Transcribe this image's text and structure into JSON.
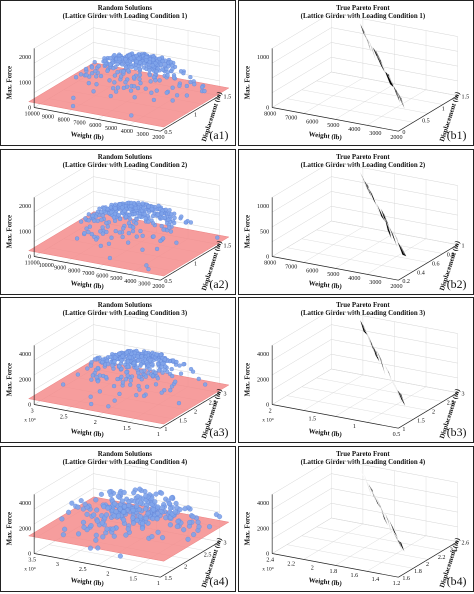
{
  "figure": {
    "panels": [
      {
        "id": "a1",
        "kind": "random",
        "title": "Random Solutions",
        "subtitle": "(Lattice Girder with Loading Condition 1)",
        "label": "(a1)",
        "zlabel": "Max. Force",
        "xlabel": "Weight (lb)",
        "ylabel": "Displacement (in)",
        "ztick_labels": [
          "0",
          "1000",
          "2000"
        ],
        "xtick_labels": [
          "10000",
          "9000",
          "8000",
          "7000",
          "6000",
          "5000",
          "4000",
          "3000",
          "2000"
        ],
        "ytick_labels": [
          "0.5",
          "1",
          "1.5"
        ],
        "x_multiplier": ""
      },
      {
        "id": "b1",
        "kind": "pareto",
        "title": "True Pareto Front",
        "subtitle": "(Lattice Girder with Loading Condition 1)",
        "label": "(b1)",
        "zlabel": "Max. Force",
        "xlabel": "Weight (lb)",
        "ylabel": "Displacement (in)",
        "ztick_labels": [
          "0",
          "1000"
        ],
        "xtick_labels": [
          "8000",
          "7000",
          "6000",
          "5000",
          "4000",
          "3000",
          "2000"
        ],
        "ytick_labels": [
          "0",
          "0.5",
          "1",
          "1.5"
        ],
        "x_multiplier": ""
      },
      {
        "id": "a2",
        "kind": "random",
        "title": "Random Solutions",
        "subtitle": "(Lattice Girder with Loading Condition 2)",
        "label": "(a2)",
        "zlabel": "Max. Force",
        "xlabel": "Weight (lb)",
        "ylabel": "Displacement (in)",
        "ztick_labels": [
          "0",
          "1000",
          "2000"
        ],
        "xtick_labels": [
          "11000",
          "10000",
          "9000",
          "8000",
          "7000",
          "6000",
          "5000",
          "4000",
          "3000",
          "2000"
        ],
        "ytick_labels": [
          "0.5",
          "1",
          "1.5"
        ],
        "x_multiplier": ""
      },
      {
        "id": "b2",
        "kind": "pareto",
        "title": "True Pareto Front",
        "subtitle": "(Lattice Girder with Loading Condition 2)",
        "label": "(b2)",
        "zlabel": "Max. Force",
        "xlabel": "Weight (lb)",
        "ylabel": "Displacement (in)",
        "ztick_labels": [
          "0",
          "500",
          "1000"
        ],
        "xtick_labels": [
          "8000",
          "7000",
          "6000",
          "5000",
          "4000",
          "3000",
          "2000"
        ],
        "ytick_labels": [
          "0.2",
          "0.4",
          "0.6",
          "0.8",
          "1"
        ],
        "x_multiplier": ""
      },
      {
        "id": "a3",
        "kind": "random",
        "title": "Random Solutions",
        "subtitle": "(Lattice Girder with Loading Condition 3)",
        "label": "(a3)",
        "zlabel": "Max. Force",
        "xlabel": "Weight (lb)",
        "ylabel": "Displacement (in)",
        "ztick_labels": [
          "0",
          "2000",
          "4000"
        ],
        "xtick_labels": [
          "3",
          "2.5",
          "2",
          "1.5",
          "1"
        ],
        "ytick_labels": [
          "1",
          "1.5",
          "2",
          "2.5",
          "3"
        ],
        "x_multiplier": "x 10⁴"
      },
      {
        "id": "b3",
        "kind": "pareto",
        "title": "True Pareto Front",
        "subtitle": "(Lattice Girder with Loading Condition 3)",
        "label": "(b3)",
        "zlabel": "Max. Force",
        "xlabel": "Weight (lb)",
        "ylabel": "Displacement (in)",
        "ztick_labels": [
          "0",
          "2000",
          "4000"
        ],
        "xtick_labels": [
          "2",
          "1.5",
          "1",
          "0.5"
        ],
        "ytick_labels": [
          "1",
          "1.5",
          "2",
          "2.5",
          "3"
        ],
        "x_multiplier": "x 10⁴"
      },
      {
        "id": "a4",
        "kind": "random",
        "title": "Random Solutions",
        "subtitle": "(Lattice Girder with Loading Condition 4)",
        "label": "(a4)",
        "zlabel": "Max. Force",
        "xlabel": "Weight (lb)",
        "ylabel": "Displacement (in)",
        "ztick_labels": [
          "0",
          "2000",
          "4000"
        ],
        "xtick_labels": [
          "3.5",
          "3",
          "2.5",
          "2",
          "1.5",
          "1"
        ],
        "ytick_labels": [
          "1.5",
          "2",
          "2.5",
          "3"
        ],
        "x_multiplier": "x 10⁴"
      },
      {
        "id": "b4",
        "kind": "pareto",
        "title": "True Pareto Front",
        "subtitle": "(Lattice Girder with Loading Condition 4)",
        "label": "(b4)",
        "zlabel": "Max. Force",
        "xlabel": "Weight (lb)",
        "ylabel": "Displacement (in)",
        "ztick_labels": [
          "0",
          "2000",
          "4000"
        ],
        "xtick_labels": [
          "2.4",
          "2.2",
          "2",
          "1.8",
          "1.6",
          "1.4",
          "1.2"
        ],
        "ytick_labels": [
          "1.6",
          "1.8",
          "2",
          "2.2",
          "2.4",
          "2.6"
        ],
        "x_multiplier": "x 10⁴"
      }
    ]
  },
  "colors": {
    "points": "#7fa4ea",
    "points_edge": "#5b7fd6",
    "points_fill_dense": "#a9c3f2",
    "plane": "#f48c8c",
    "surface": "#000000",
    "axes": "#222222",
    "grid": "#d4d4d4"
  },
  "chart_data": [
    {
      "type": "scatter",
      "panel": "a1",
      "title": "Random Solutions",
      "subtitle": "(Lattice Girder with Loading Condition 1)",
      "xlabel": "Weight (lb)",
      "ylabel": "Displacement (in)",
      "zlabel": "Max. Force",
      "xlim": [
        2000,
        10000
      ],
      "ylim": [
        0,
        1.5
      ],
      "zlim": [
        0,
        2500
      ],
      "series": [
        {
          "points": [
            [
              9000,
              0.3,
              300
            ],
            [
              8500,
              0.5,
              600
            ],
            [
              8000,
              0.7,
              900
            ],
            [
              7500,
              0.9,
              1200
            ],
            [
              7000,
              1.0,
              1500
            ],
            [
              6500,
              1.1,
              1700
            ],
            [
              6000,
              1.2,
              1800
            ],
            [
              5500,
              1.3,
              1700
            ],
            [
              5000,
              1.3,
              1500
            ],
            [
              4500,
              1.2,
              1300
            ],
            [
              4000,
              1.1,
              1000
            ],
            [
              3500,
              1.0,
              800
            ],
            [
              3000,
              1.2,
              700
            ],
            [
              7000,
              0.6,
              800
            ],
            [
              6000,
              0.8,
              1100
            ],
            [
              5000,
              0.9,
              1200
            ]
          ]
        }
      ]
    },
    {
      "type": "surface",
      "panel": "b1",
      "title": "True Pareto Front",
      "subtitle": "(Lattice Girder with Loading Condition 1)",
      "xlabel": "Weight (lb)",
      "ylabel": "Displacement (in)",
      "zlabel": "Max. Force",
      "xlim": [
        2000,
        8000
      ],
      "ylim": [
        0,
        1.5
      ],
      "zlim": [
        0,
        1500
      ],
      "series": [
        {
          "points": [
            [
              7000,
              0.2,
              1100
            ],
            [
              6500,
              0.3,
              1050
            ],
            [
              6000,
              0.35,
              1000
            ],
            [
              5500,
              0.45,
              950
            ],
            [
              5000,
              0.55,
              900
            ],
            [
              4500,
              0.65,
              850
            ],
            [
              4000,
              0.8,
              800
            ],
            [
              3500,
              0.95,
              700
            ],
            [
              3000,
              1.1,
              600
            ],
            [
              2500,
              1.3,
              400
            ]
          ]
        }
      ]
    },
    {
      "type": "scatter",
      "panel": "a2",
      "title": "Random Solutions",
      "subtitle": "(Lattice Girder with Loading Condition 2)",
      "xlabel": "Weight (lb)",
      "ylabel": "Displacement (in)",
      "zlabel": "Max. Force",
      "xlim": [
        2000,
        11000
      ],
      "ylim": [
        0,
        1.5
      ],
      "zlim": [
        0,
        2500
      ],
      "series": [
        {
          "points": [
            [
              10000,
              0.3,
              400
            ],
            [
              9000,
              0.5,
              700
            ],
            [
              8000,
              0.7,
              1000
            ],
            [
              7000,
              0.9,
              1300
            ],
            [
              6500,
              1.0,
              1500
            ],
            [
              6000,
              1.1,
              1600
            ],
            [
              5000,
              1.2,
              1500
            ],
            [
              4500,
              1.3,
              1300
            ],
            [
              4000,
              1.2,
              1000
            ],
            [
              3500,
              1.1,
              800
            ],
            [
              8000,
              0.4,
              500
            ],
            [
              6000,
              0.7,
              900
            ]
          ]
        }
      ]
    },
    {
      "type": "surface",
      "panel": "b2",
      "title": "True Pareto Front",
      "subtitle": "(Lattice Girder with Loading Condition 2)",
      "xlabel": "Weight (lb)",
      "ylabel": "Displacement (in)",
      "zlabel": "Max. Force",
      "xlim": [
        2000,
        8000
      ],
      "ylim": [
        0.2,
        1
      ],
      "zlim": [
        0,
        1200
      ],
      "series": [
        {
          "points": [
            [
              7000,
              0.3,
              1000
            ],
            [
              6500,
              0.35,
              950
            ],
            [
              6000,
              0.4,
              900
            ],
            [
              5500,
              0.45,
              850
            ],
            [
              5000,
              0.5,
              750
            ],
            [
              4500,
              0.6,
              650
            ],
            [
              4000,
              0.7,
              550
            ],
            [
              3500,
              0.8,
              450
            ],
            [
              3000,
              0.9,
              350
            ]
          ]
        }
      ]
    },
    {
      "type": "scatter",
      "panel": "a3",
      "title": "Random Solutions",
      "subtitle": "(Lattice Girder with Loading Condition 3)",
      "xlabel": "Weight (lb)",
      "ylabel": "Displacement (in)",
      "zlabel": "Max. Force",
      "xlim": [
        10000,
        30000
      ],
      "ylim": [
        1,
        3
      ],
      "zlim": [
        0,
        5000
      ],
      "series": [
        {
          "points": [
            [
              28000,
              1.3,
              1500
            ],
            [
              26000,
              1.6,
              2500
            ],
            [
              24000,
              1.9,
              3200
            ],
            [
              22000,
              2.2,
              3600
            ],
            [
              20000,
              2.4,
              3700
            ],
            [
              18000,
              2.6,
              3500
            ],
            [
              16000,
              2.7,
              3000
            ],
            [
              14000,
              2.6,
              2400
            ],
            [
              12000,
              2.4,
              1800
            ],
            [
              22000,
              1.5,
              2000
            ],
            [
              18000,
              1.8,
              2300
            ]
          ]
        }
      ]
    },
    {
      "type": "surface",
      "panel": "b3",
      "title": "True Pareto Front",
      "subtitle": "(Lattice Girder with Loading Condition 3)",
      "xlabel": "Weight (lb)",
      "ylabel": "Displacement (in)",
      "zlabel": "Max. Force",
      "xlim": [
        5000,
        20000
      ],
      "ylim": [
        1,
        3
      ],
      "zlim": [
        0,
        5000
      ],
      "series": [
        {
          "points": [
            [
              19000,
              1.3,
              3600
            ],
            [
              17000,
              1.5,
              3500
            ],
            [
              15000,
              1.7,
              3400
            ],
            [
              13000,
              1.9,
              3300
            ],
            [
              11000,
              2.1,
              3100
            ],
            [
              9000,
              2.3,
              2800
            ],
            [
              7000,
              2.5,
              2300
            ],
            [
              6000,
              2.7,
              1800
            ]
          ]
        }
      ]
    },
    {
      "type": "scatter",
      "panel": "a4",
      "title": "Random Solutions",
      "subtitle": "(Lattice Girder with Loading Condition 4)",
      "xlabel": "Weight (lb)",
      "ylabel": "Displacement (in)",
      "zlabel": "Max. Force",
      "xlim": [
        10000,
        35000
      ],
      "ylim": [
        1.5,
        3
      ],
      "zlim": [
        0,
        5000
      ],
      "series": [
        {
          "points": [
            [
              33000,
              1.7,
              1500
            ],
            [
              30000,
              1.9,
              2200
            ],
            [
              27000,
              2.1,
              2800
            ],
            [
              24000,
              2.3,
              3000
            ],
            [
              21000,
              2.5,
              2900
            ],
            [
              18000,
              2.6,
              2600
            ],
            [
              15000,
              2.7,
              2200
            ],
            [
              12000,
              2.8,
              1700
            ],
            [
              25000,
              1.8,
              2000
            ],
            [
              20000,
              2.0,
              2400
            ]
          ]
        }
      ]
    },
    {
      "type": "surface",
      "panel": "b4",
      "title": "True Pareto Front",
      "subtitle": "(Lattice Girder with Loading Condition 4)",
      "xlabel": "Weight (lb)",
      "ylabel": "Displacement (in)",
      "zlabel": "Max. Force",
      "xlim": [
        12000,
        24000
      ],
      "ylim": [
        1.6,
        2.6
      ],
      "zlim": [
        0,
        5000
      ],
      "series": [
        {
          "points": [
            [
              23000,
              1.7,
              4200
            ],
            [
              21500,
              1.8,
              4000
            ],
            [
              20000,
              1.9,
              3800
            ],
            [
              18500,
              2.0,
              3500
            ],
            [
              17000,
              2.1,
              3100
            ],
            [
              15500,
              2.2,
              2600
            ],
            [
              14000,
              2.35,
              2100
            ],
            [
              13000,
              2.5,
              1600
            ]
          ]
        }
      ]
    }
  ]
}
